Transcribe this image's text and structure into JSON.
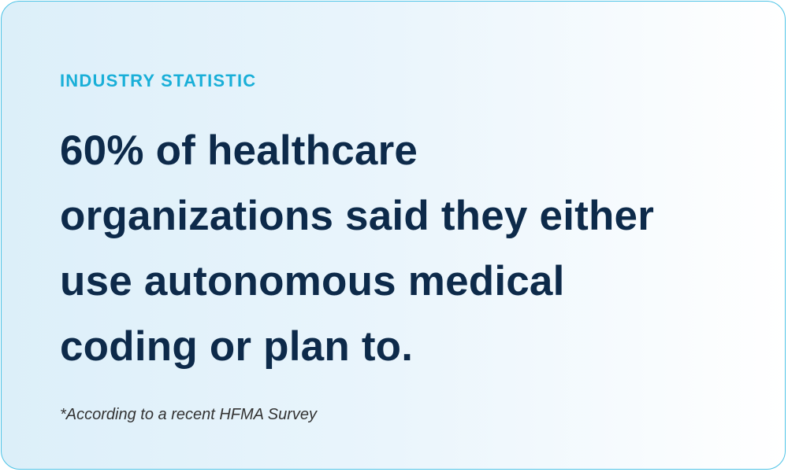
{
  "eyebrow": "INDUSTRY STATISTIC",
  "statement_lines": [
    "60% of healthcare",
    "organizations said they either",
    "use autonomous medical",
    "coding or plan to."
  ],
  "footnote": "*According to a recent HFMA Survey"
}
